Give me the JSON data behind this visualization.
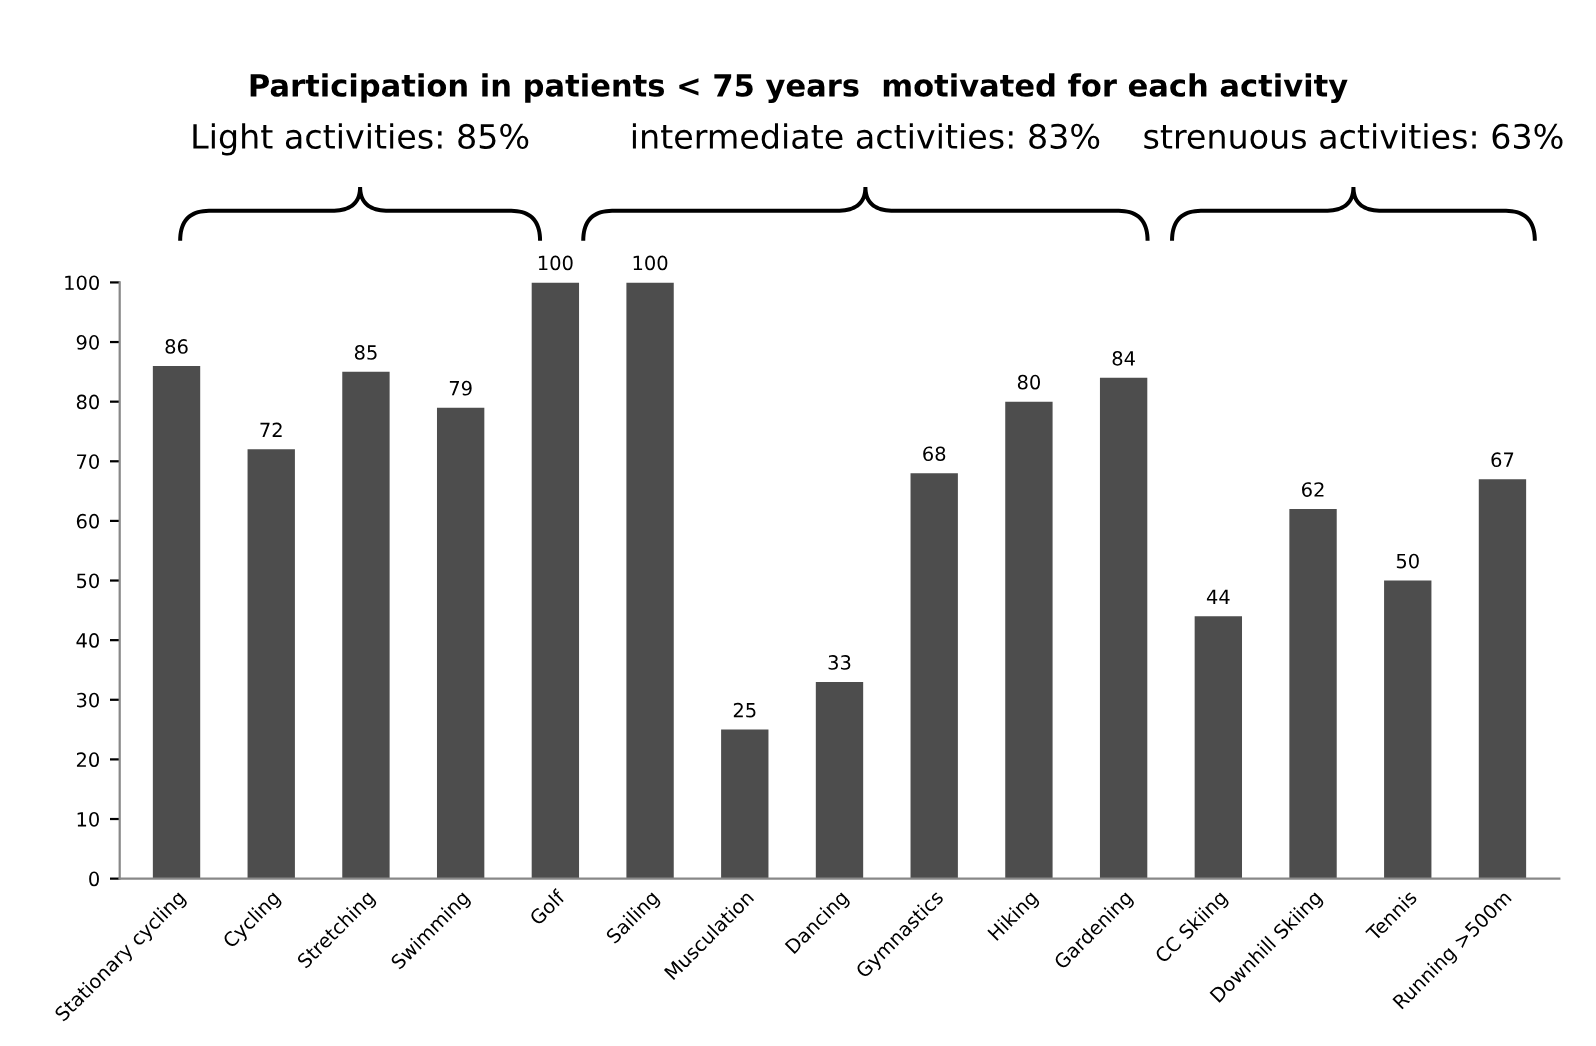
{
  "chart_data": {
    "type": "bar",
    "title": "Participation in patients < 75 years  motivated for each activity",
    "categories": [
      "Stationary cycling",
      "Cycling",
      "Stretching",
      "Swimming",
      "Golf",
      "Sailing",
      "Musculation",
      "Dancing",
      "Gymnastics",
      "Hiking",
      "Gardening",
      "CC Skiing",
      "Downhill Skiing",
      "Tennis",
      "Running >500m"
    ],
    "values": [
      86,
      72,
      85,
      79,
      100,
      100,
      25,
      33,
      68,
      80,
      84,
      44,
      62,
      50,
      67
    ],
    "color": "#4d4d4d",
    "ylim": [
      0,
      100
    ],
    "yticks": [
      0,
      10,
      20,
      30,
      40,
      50,
      60,
      70,
      80,
      90,
      100
    ],
    "data_labels": true,
    "grid": false,
    "legend": false,
    "annotations": [
      "Light activities: 85%",
      "intermediate activities: 83%",
      "strenuous activities: 63%"
    ]
  }
}
